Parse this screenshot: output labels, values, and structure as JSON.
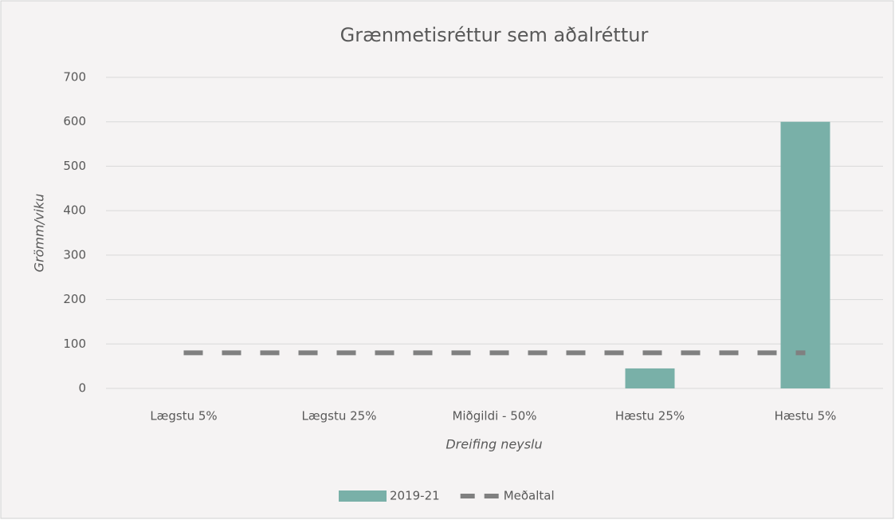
{
  "chart_data": {
    "type": "bar",
    "title": "Grænmetisréttur sem aðalréttur",
    "x_label": "Dreifing neyslu",
    "y_label": "Grömm/viku",
    "categories": [
      "Lægstu 5%",
      "Lægstu 25%",
      "Miðgildi - 50%",
      "Hæstu 25%",
      "Hæstu 5%"
    ],
    "series": [
      {
        "name": "2019-21",
        "type": "bar",
        "color": "#79b0a8",
        "values": [
          0,
          0,
          0,
          45,
          600
        ]
      },
      {
        "name": "Meðaltal",
        "type": "line",
        "color": "#808080",
        "dashed": true,
        "values": [
          80,
          80,
          80,
          80,
          80
        ]
      }
    ],
    "ylim": [
      0,
      700
    ],
    "yticks": [
      0,
      100,
      200,
      300,
      400,
      500,
      600,
      700
    ],
    "grid": true,
    "legend": "bottom"
  }
}
